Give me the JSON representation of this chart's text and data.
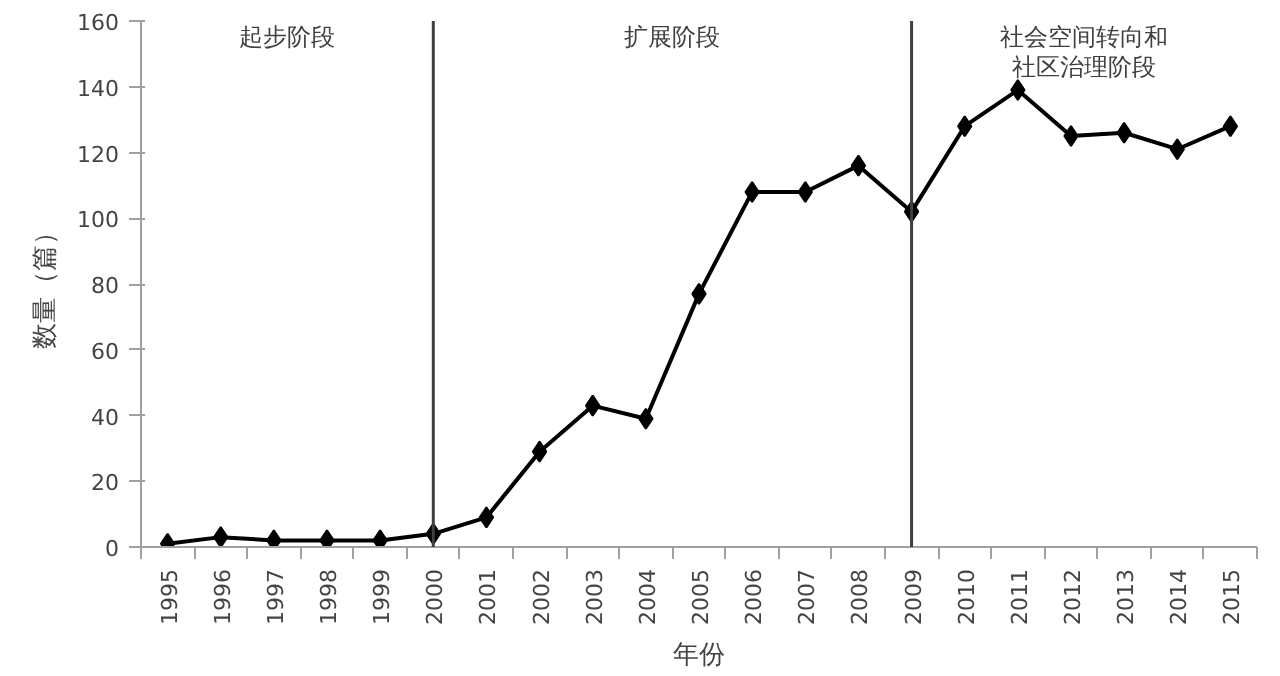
{
  "chart_data": {
    "type": "line",
    "xlabel": "年份",
    "ylabel": "数量（篇）",
    "categories": [
      "1995",
      "1996",
      "1997",
      "1998",
      "1999",
      "2000",
      "2001",
      "2002",
      "2003",
      "2004",
      "2005",
      "2006",
      "2007",
      "2008",
      "2009",
      "2010",
      "2011",
      "2012",
      "2013",
      "2014",
      "2015"
    ],
    "series": [
      {
        "color": "#000000",
        "values": [
          1,
          3,
          2,
          2,
          2,
          4,
          9,
          29,
          43,
          39,
          77,
          108,
          108,
          116,
          102,
          128,
          139,
          125,
          126,
          121,
          128
        ]
      }
    ],
    "ylim": [
      0,
      160
    ],
    "yticks": [
      0,
      20,
      40,
      60,
      80,
      100,
      120,
      140,
      160
    ],
    "grid": false,
    "marker": "diamond",
    "line_style": "solid",
    "ref_lines": [
      {
        "axis": "x",
        "value": "2000",
        "color": "#404040"
      },
      {
        "axis": "x",
        "value": "2009",
        "color": "#404040"
      }
    ],
    "annotations": [
      "起步阶段",
      "扩展阶段",
      "社会空间转向和社区治理阶段"
    ]
  }
}
